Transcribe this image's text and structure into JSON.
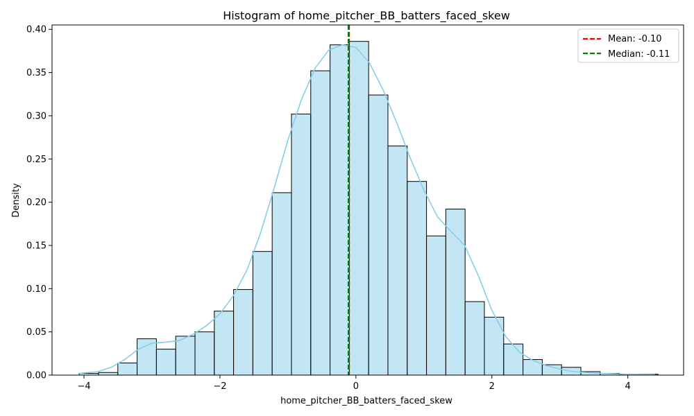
{
  "chart_data": {
    "type": "bar",
    "title": "Histogram of home_pitcher_BB_batters_faced_skew",
    "xlabel": "home_pitcher_BB_batters_faced_skew",
    "ylabel": "Density",
    "xlim": [
      -4.47,
      4.82
    ],
    "ylim": [
      0,
      0.405
    ],
    "x_ticks": [
      -4,
      -2,
      0,
      2,
      4
    ],
    "y_ticks": [
      0.0,
      0.05,
      0.1,
      0.15,
      0.2,
      0.25,
      0.3,
      0.35,
      0.4
    ],
    "bins": {
      "start": -4.07,
      "width": 0.2838,
      "values": [
        0.002,
        0.003,
        0.014,
        0.042,
        0.03,
        0.045,
        0.05,
        0.074,
        0.099,
        0.143,
        0.211,
        0.302,
        0.352,
        0.382,
        0.386,
        0.324,
        0.265,
        0.224,
        0.161,
        0.192,
        0.085,
        0.067,
        0.036,
        0.018,
        0.012,
        0.009,
        0.004,
        0.002,
        0.001,
        0.001
      ]
    },
    "bar_fill": "#87ceeb",
    "bar_fill_opacity": 0.5,
    "bar_edge": "#000000",
    "kde": {
      "color": "#87ceeb",
      "x": [
        -4.07,
        -3.8,
        -3.6,
        -3.4,
        -3.2,
        -3.0,
        -2.8,
        -2.6,
        -2.4,
        -2.2,
        -2.0,
        -1.8,
        -1.6,
        -1.4,
        -1.2,
        -1.0,
        -0.8,
        -0.6,
        -0.4,
        -0.2,
        0.0,
        0.2,
        0.4,
        0.6,
        0.8,
        1.0,
        1.2,
        1.4,
        1.6,
        1.8,
        2.0,
        2.2,
        2.4,
        2.6,
        2.8,
        3.0,
        3.2,
        3.4,
        3.6,
        3.8,
        4.0,
        4.2,
        4.4
      ],
      "y": [
        0.002,
        0.004,
        0.009,
        0.018,
        0.03,
        0.037,
        0.038,
        0.04,
        0.047,
        0.057,
        0.071,
        0.092,
        0.122,
        0.165,
        0.217,
        0.272,
        0.319,
        0.355,
        0.376,
        0.382,
        0.379,
        0.361,
        0.33,
        0.292,
        0.251,
        0.214,
        0.183,
        0.166,
        0.15,
        0.115,
        0.075,
        0.045,
        0.027,
        0.017,
        0.011,
        0.007,
        0.004,
        0.003,
        0.002,
        0.0015,
        0.001,
        0.0008,
        0.0005
      ]
    },
    "lines": [
      {
        "name": "Mean: -0.10",
        "x": -0.1,
        "color": "#ff0000",
        "dash": "dashed"
      },
      {
        "name": "Median: -0.11",
        "x": -0.11,
        "color": "#008000",
        "dash": "dashed"
      }
    ],
    "legend_placement": "top-right",
    "grid": false
  }
}
